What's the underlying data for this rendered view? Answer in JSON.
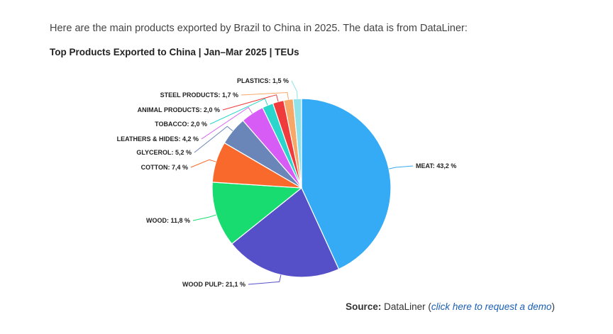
{
  "intro_text": "Here are the main products exported by Brazil to China in 2025. The data is from DataLiner:",
  "chart_data": {
    "type": "pie",
    "title": "Top Products Exported to China | Jan–Mar 2025 | TEUs",
    "slices": [
      {
        "label": "MEAT: 43,2 %",
        "value": 43.2,
        "color": "#36abf5"
      },
      {
        "label": "WOOD PULP: 21,1 %",
        "value": 21.1,
        "color": "#5550c8"
      },
      {
        "label": "WOOD: 11,8 %",
        "value": 11.8,
        "color": "#18dc70"
      },
      {
        "label": "COTTON: 7,4 %",
        "value": 7.4,
        "color": "#f9692b"
      },
      {
        "label": "GLYCEROL: 5,2 %",
        "value": 5.2,
        "color": "#6a85b8"
      },
      {
        "label": "LEATHERS & HIDES: 4,2 %",
        "value": 4.2,
        "color": "#d75cf5"
      },
      {
        "label": "TOBACCO: 2,0 %",
        "value": 2.0,
        "color": "#2ad6cc"
      },
      {
        "label": "ANIMAL PRODUCTS: 2,0 %",
        "value": 2.0,
        "color": "#ef3b3b"
      },
      {
        "label": "STEEL PRODUCTS: 1,7 %",
        "value": 1.7,
        "color": "#f7a868"
      },
      {
        "label": "PLASTICS: 1,5 %",
        "value": 1.5,
        "color": "#90e2e8"
      }
    ]
  },
  "source": {
    "label": "Source:",
    "name": "DataLiner",
    "open_paren": "(",
    "link_text": "click here to request a demo",
    "close_paren": ")"
  }
}
